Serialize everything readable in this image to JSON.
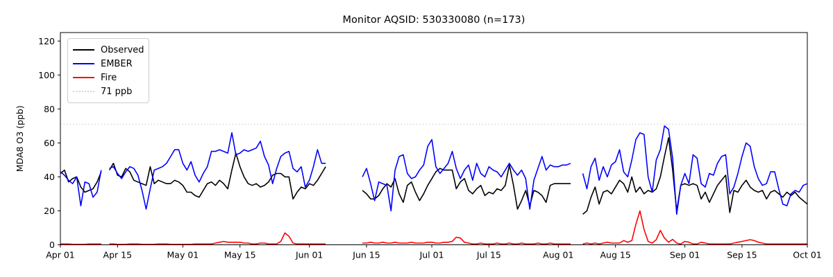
{
  "title": "Monitor AQSID: 530330080 (n=173)",
  "axes": {
    "ylabel": "MDA8 O3 (ppb)",
    "yticks": [
      0,
      20,
      40,
      60,
      80,
      100,
      120
    ],
    "xticks": [
      {
        "day": 0,
        "label": "Apr 01"
      },
      {
        "day": 14,
        "label": "Apr 15"
      },
      {
        "day": 30,
        "label": "May 01"
      },
      {
        "day": 44,
        "label": "May 15"
      },
      {
        "day": 61,
        "label": "Jun 01"
      },
      {
        "day": 75,
        "label": "Jun 15"
      },
      {
        "day": 91,
        "label": "Jul 01"
      },
      {
        "day": 105,
        "label": "Jul 15"
      },
      {
        "day": 122,
        "label": "Aug 01"
      },
      {
        "day": 136,
        "label": "Aug 15"
      },
      {
        "day": 153,
        "label": "Sep 01"
      },
      {
        "day": 167,
        "label": "Sep 15"
      },
      {
        "day": 183,
        "label": "Oct 01"
      }
    ]
  },
  "legend": {
    "items": [
      {
        "label": "Observed",
        "color": "#000000",
        "style": "solid"
      },
      {
        "label": "EMBER",
        "color": "#0000ff",
        "style": "solid"
      },
      {
        "label": "Fire",
        "color": "#ff0000",
        "style": "solid"
      },
      {
        "label": "71 ppb",
        "color": "#d3d3d3",
        "style": "dotted"
      }
    ]
  },
  "chart_data": {
    "type": "line",
    "title": "Monitor AQSID: 530330080 (n=173)",
    "n_points": 173,
    "x_start": "Apr 01",
    "x_end": "Oct 01",
    "x_unit": "day",
    "ylabel": "MDA8 O3 (ppb)",
    "ylim": [
      0,
      125
    ],
    "grid": false,
    "legend_position": "upper left",
    "missing_dates": [
      "Apr 12",
      "Jun 06-13",
      "Aug 05-06"
    ],
    "threshold": {
      "label": "71 ppb",
      "value": 71,
      "color": "#d3d3d3",
      "style": "dotted"
    },
    "series": [
      {
        "name": "Observed",
        "color": "#000000",
        "values": [
          42,
          44,
          37,
          39,
          40,
          34,
          31,
          32,
          33,
          37,
          43,
          null,
          44,
          48,
          41,
          40,
          45,
          43,
          38,
          37,
          36,
          35,
          46,
          36,
          38,
          37,
          36,
          36,
          38,
          37,
          35,
          31,
          31,
          29,
          28,
          32,
          36,
          37,
          35,
          38,
          36,
          33,
          44,
          54,
          46,
          40,
          36,
          35,
          36,
          34,
          35,
          37,
          41,
          42,
          42,
          40,
          40,
          27,
          31,
          34,
          33,
          36,
          35,
          38,
          42,
          46,
          null,
          null,
          null,
          null,
          null,
          null,
          null,
          null,
          32,
          30,
          27,
          27,
          29,
          33,
          36,
          34,
          39,
          30,
          25,
          35,
          37,
          31,
          26,
          30,
          35,
          39,
          43,
          45,
          44,
          44,
          44,
          33,
          37,
          39,
          32,
          30,
          33,
          35,
          29,
          31,
          30,
          33,
          32,
          35,
          47,
          35,
          21,
          26,
          32,
          23,
          32,
          31,
          29,
          25,
          35,
          36,
          36,
          36,
          36,
          36,
          null,
          null,
          18,
          20,
          28,
          34,
          24,
          31,
          32,
          30,
          34,
          38,
          36,
          31,
          40,
          31,
          34,
          30,
          32,
          31,
          33,
          40,
          52,
          63,
          44,
          20,
          35,
          36,
          35,
          36,
          35,
          27,
          31,
          25,
          30,
          35,
          38,
          41,
          19,
          32,
          31,
          35,
          38,
          34,
          32,
          31,
          32,
          27,
          31,
          32,
          30,
          28,
          31,
          29,
          31,
          28,
          26,
          24
        ]
      },
      {
        "name": "EMBER",
        "color": "#0000ff",
        "values": [
          43,
          41,
          38,
          36,
          40,
          23,
          37,
          36,
          28,
          31,
          44,
          null,
          45,
          46,
          42,
          39,
          43,
          46,
          45,
          41,
          32,
          21,
          33,
          44,
          45,
          46,
          48,
          52,
          56,
          56,
          48,
          44,
          49,
          41,
          37,
          42,
          46,
          55,
          55,
          56,
          55,
          54,
          66,
          53,
          54,
          56,
          55,
          56,
          57,
          61,
          52,
          47,
          36,
          45,
          52,
          54,
          55,
          45,
          43,
          46,
          34,
          38,
          46,
          56,
          48,
          48,
          null,
          null,
          null,
          null,
          null,
          null,
          null,
          null,
          40,
          45,
          36,
          26,
          37,
          36,
          35,
          20,
          44,
          52,
          53,
          42,
          39,
          40,
          44,
          47,
          58,
          62,
          46,
          42,
          45,
          48,
          55,
          45,
          39,
          44,
          47,
          38,
          48,
          42,
          40,
          46,
          44,
          43,
          40,
          44,
          48,
          44,
          41,
          44,
          39,
          21,
          38,
          45,
          52,
          44,
          47,
          46,
          46,
          47,
          47,
          48,
          null,
          null,
          42,
          33,
          46,
          51,
          38,
          46,
          40,
          47,
          49,
          56,
          43,
          40,
          50,
          62,
          66,
          65,
          40,
          31,
          50,
          56,
          70,
          68,
          51,
          18,
          35,
          42,
          36,
          53,
          51,
          36,
          34,
          42,
          41,
          48,
          52,
          53,
          30,
          34,
          42,
          52,
          60,
          58,
          46,
          39,
          35,
          36,
          43,
          43,
          33,
          24,
          23,
          30,
          32,
          31,
          35,
          36
        ]
      },
      {
        "name": "Fire",
        "color": "#ff0000",
        "values": [
          0.5,
          0.5,
          0.5,
          0.3,
          0.3,
          0.3,
          0.3,
          0.5,
          0.5,
          0.5,
          0.5,
          null,
          0.5,
          0.5,
          0.3,
          0.3,
          0.3,
          0.5,
          0.5,
          0.5,
          0.3,
          0.3,
          0.3,
          0.3,
          0.5,
          0.5,
          0.5,
          0.3,
          0.3,
          0.3,
          0.3,
          0.3,
          0.3,
          0.5,
          0.5,
          0.5,
          0.5,
          0.5,
          1,
          1.5,
          2,
          1.5,
          1.5,
          1.5,
          1.5,
          1,
          1,
          0.5,
          0.5,
          1,
          1,
          0.5,
          0.5,
          0.5,
          2,
          7,
          5,
          1,
          0.5,
          0.5,
          0.5,
          0.5,
          0.5,
          0.5,
          0.5,
          0.5,
          null,
          null,
          null,
          null,
          null,
          null,
          null,
          null,
          1,
          1,
          1.5,
          1,
          1,
          1.5,
          1,
          1,
          1.5,
          1,
          1,
          1,
          1.5,
          1,
          1,
          1,
          1.5,
          1.5,
          1,
          1,
          1.5,
          1.5,
          2,
          4.5,
          4,
          1.5,
          1,
          0.5,
          0.5,
          1,
          0.5,
          0.5,
          0.5,
          1,
          0.5,
          0.5,
          1,
          0.5,
          0.5,
          1,
          0.5,
          0.5,
          0.5,
          1,
          0.5,
          0.5,
          1,
          0.5,
          0.5,
          0.5,
          0.5,
          0.5,
          null,
          null,
          0.5,
          1,
          0.5,
          1,
          0.5,
          1,
          1.5,
          1,
          1,
          1,
          2.5,
          1.5,
          2.5,
          12,
          20,
          9,
          2,
          1,
          3,
          8.5,
          4,
          1.5,
          3.2,
          1,
          0.5,
          2,
          1.5,
          0.5,
          0.5,
          1.5,
          1,
          0.5,
          0.5,
          0.5,
          0.5,
          0.5,
          0.5,
          1,
          1.5,
          2,
          2.5,
          3,
          2.5,
          1.5,
          1,
          0.5,
          0.5,
          0.5,
          0.5,
          0.5,
          0.5,
          0.5,
          0.5,
          0.5,
          0.5,
          0.5
        ]
      }
    ]
  }
}
